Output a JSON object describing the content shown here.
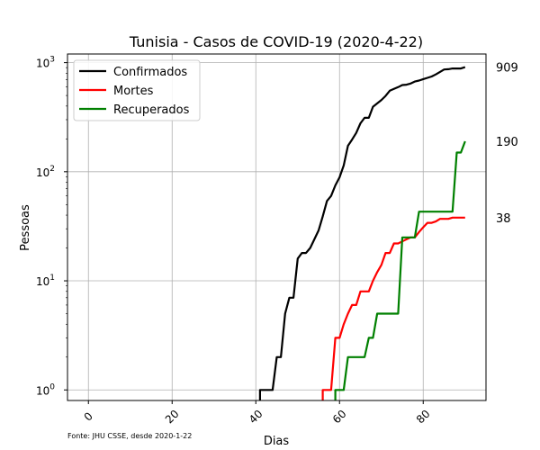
{
  "chart_data": {
    "type": "line",
    "title": "Tunisia - Casos de COVID-19 (2020-4-22)",
    "xlabel": "Dias",
    "ylabel": "Pessoas",
    "source": "Fonte: JHU CSSE, desde 2020-1-22",
    "xlim": [
      -5,
      95
    ],
    "ylim": [
      0.8,
      1200
    ],
    "yscale": "log",
    "xticks": [
      {
        "value": 0,
        "label": "0"
      },
      {
        "value": 20,
        "label": "20"
      },
      {
        "value": 40,
        "label": "40"
      },
      {
        "value": 60,
        "label": "60"
      },
      {
        "value": 80,
        "label": "80"
      }
    ],
    "yticks": [
      {
        "value": 1,
        "base": "10",
        "exp": "0"
      },
      {
        "value": 10,
        "base": "10",
        "exp": "1"
      },
      {
        "value": 100,
        "base": "10",
        "exp": "2"
      },
      {
        "value": 1000,
        "base": "10",
        "exp": "3"
      }
    ],
    "grid": true,
    "legend_position": "top-left",
    "series": [
      {
        "name": "Confirmados",
        "color": "#000000",
        "end_label": "909",
        "points": [
          [
            41,
            0.5
          ],
          [
            41,
            1
          ],
          [
            42,
            1
          ],
          [
            43,
            1
          ],
          [
            44,
            1
          ],
          [
            45,
            2
          ],
          [
            46,
            2
          ],
          [
            47,
            5
          ],
          [
            48,
            7
          ],
          [
            49,
            7
          ],
          [
            50,
            16
          ],
          [
            51,
            18
          ],
          [
            52,
            18
          ],
          [
            53,
            20
          ],
          [
            54,
            24
          ],
          [
            55,
            29
          ],
          [
            56,
            39
          ],
          [
            57,
            54
          ],
          [
            58,
            60
          ],
          [
            59,
            75
          ],
          [
            60,
            89
          ],
          [
            61,
            114
          ],
          [
            62,
            173
          ],
          [
            63,
            197
          ],
          [
            64,
            227
          ],
          [
            65,
            278
          ],
          [
            66,
            312
          ],
          [
            67,
            312
          ],
          [
            68,
            394
          ],
          [
            69,
            423
          ],
          [
            70,
            455
          ],
          [
            71,
            495
          ],
          [
            72,
            553
          ],
          [
            73,
            574
          ],
          [
            74,
            596
          ],
          [
            75,
            623
          ],
          [
            76,
            628
          ],
          [
            77,
            643
          ],
          [
            78,
            671
          ],
          [
            79,
            685
          ],
          [
            80,
            707
          ],
          [
            81,
            726
          ],
          [
            82,
            747
          ],
          [
            83,
            780
          ],
          [
            84,
            822
          ],
          [
            85,
            866
          ],
          [
            86,
            870
          ],
          [
            87,
            884
          ],
          [
            88,
            884
          ],
          [
            89,
            884
          ],
          [
            90,
            909
          ]
        ]
      },
      {
        "name": "Mortes",
        "color": "#ff0000",
        "end_label": "38",
        "points": [
          [
            56,
            0.5
          ],
          [
            56,
            1
          ],
          [
            57,
            1
          ],
          [
            58,
            1
          ],
          [
            59,
            3
          ],
          [
            60,
            3
          ],
          [
            61,
            4
          ],
          [
            62,
            5
          ],
          [
            63,
            6
          ],
          [
            64,
            6
          ],
          [
            65,
            8
          ],
          [
            66,
            8
          ],
          [
            67,
            8
          ],
          [
            68,
            10
          ],
          [
            69,
            12
          ],
          [
            70,
            14
          ],
          [
            71,
            18
          ],
          [
            72,
            18
          ],
          [
            73,
            22
          ],
          [
            74,
            22
          ],
          [
            75,
            23
          ],
          [
            76,
            24
          ],
          [
            77,
            25
          ],
          [
            78,
            25
          ],
          [
            79,
            28
          ],
          [
            80,
            31
          ],
          [
            81,
            34
          ],
          [
            82,
            34
          ],
          [
            83,
            35
          ],
          [
            84,
            37
          ],
          [
            85,
            37
          ],
          [
            86,
            37
          ],
          [
            87,
            38
          ],
          [
            88,
            38
          ],
          [
            89,
            38
          ],
          [
            90,
            38
          ]
        ]
      },
      {
        "name": "Recuperados",
        "color": "#008000",
        "end_label": "190",
        "points": [
          [
            59,
            0.5
          ],
          [
            59,
            1
          ],
          [
            60,
            1
          ],
          [
            61,
            1
          ],
          [
            62,
            2
          ],
          [
            63,
            2
          ],
          [
            64,
            2
          ],
          [
            65,
            2
          ],
          [
            66,
            2
          ],
          [
            67,
            3
          ],
          [
            68,
            3
          ],
          [
            69,
            5
          ],
          [
            70,
            5
          ],
          [
            71,
            5
          ],
          [
            72,
            5
          ],
          [
            73,
            5
          ],
          [
            74,
            5
          ],
          [
            75,
            25
          ],
          [
            76,
            25
          ],
          [
            77,
            25
          ],
          [
            78,
            25
          ],
          [
            79,
            43
          ],
          [
            80,
            43
          ],
          [
            81,
            43
          ],
          [
            82,
            43
          ],
          [
            83,
            43
          ],
          [
            84,
            43
          ],
          [
            85,
            43
          ],
          [
            86,
            43
          ],
          [
            87,
            43
          ],
          [
            88,
            150
          ],
          [
            89,
            150
          ],
          [
            90,
            190
          ]
        ]
      }
    ]
  }
}
